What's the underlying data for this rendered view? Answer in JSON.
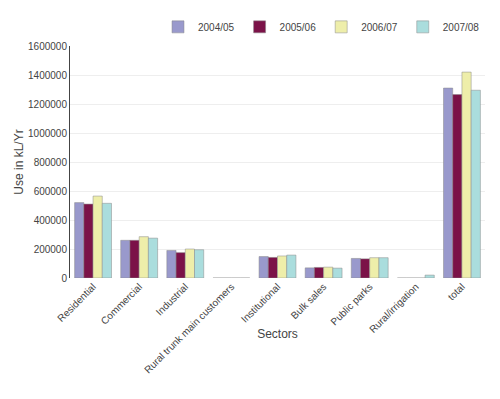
{
  "chart_data": {
    "type": "bar",
    "xlabel": "Sectors",
    "ylabel": "Use in kL/Yr",
    "categories": [
      "Residential",
      "Commercial",
      "Industrial",
      "Rural trunk main customers",
      "Institutional",
      "Bulk sales",
      "Public parks",
      "Rural/irrigation",
      "total"
    ],
    "series": [
      {
        "name": "2004/05",
        "color": "#9999cc",
        "values": [
          520000,
          260000,
          190000,
          0,
          148000,
          70000,
          135000,
          0,
          1310000
        ]
      },
      {
        "name": "2005/06",
        "color": "#7b1248",
        "values": [
          510000,
          260000,
          175000,
          0,
          142000,
          73000,
          132000,
          0,
          1265000
        ]
      },
      {
        "name": "2006/07",
        "color": "#eeeeaa",
        "values": [
          565000,
          285000,
          200000,
          0,
          152000,
          75000,
          140000,
          0,
          1420000
        ]
      },
      {
        "name": "2007/08",
        "color": "#aadddd",
        "values": [
          515000,
          275000,
          195000,
          0,
          158000,
          68000,
          140000,
          20000,
          1295000
        ]
      }
    ],
    "ylim": [
      0,
      1600000
    ],
    "yticks": [
      0,
      200000,
      400000,
      600000,
      800000,
      1000000,
      1200000,
      1400000,
      1600000
    ],
    "grid": true,
    "legend": "upper right"
  }
}
